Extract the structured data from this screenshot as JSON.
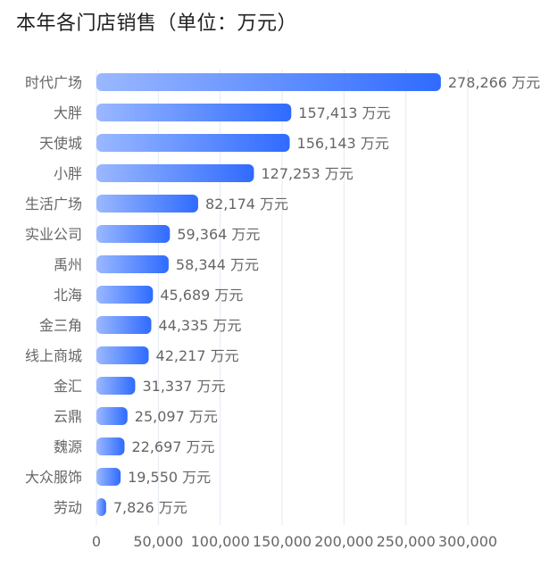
{
  "chart_data": {
    "type": "bar",
    "orientation": "horizontal",
    "title": "本年各门店销售（单位：万元）",
    "xlabel": "",
    "ylabel": "",
    "xlim": [
      0,
      300000
    ],
    "xticks": [
      "0",
      "50,000",
      "100,000",
      "150,000",
      "200,000",
      "250,000",
      "300,000"
    ],
    "value_suffix": "万元",
    "grid": "vertical",
    "categories": [
      "时代广场",
      "大胖",
      "天使城",
      "小胖",
      "生活广场",
      "实业公司",
      "禹州",
      "北海",
      "金三角",
      "线上商城",
      "金汇",
      "云鼎",
      "魏源",
      "大众服饰",
      "劳动"
    ],
    "values": [
      278266,
      157413,
      156143,
      127253,
      82174,
      59364,
      58344,
      45689,
      44335,
      42217,
      31337,
      25097,
      22697,
      19550,
      7826
    ],
    "colors": {
      "bar_start": "#9ab8ff",
      "bar_end": "#2f6bff",
      "label": "#666666",
      "grid": "#e4e9f2"
    }
  }
}
